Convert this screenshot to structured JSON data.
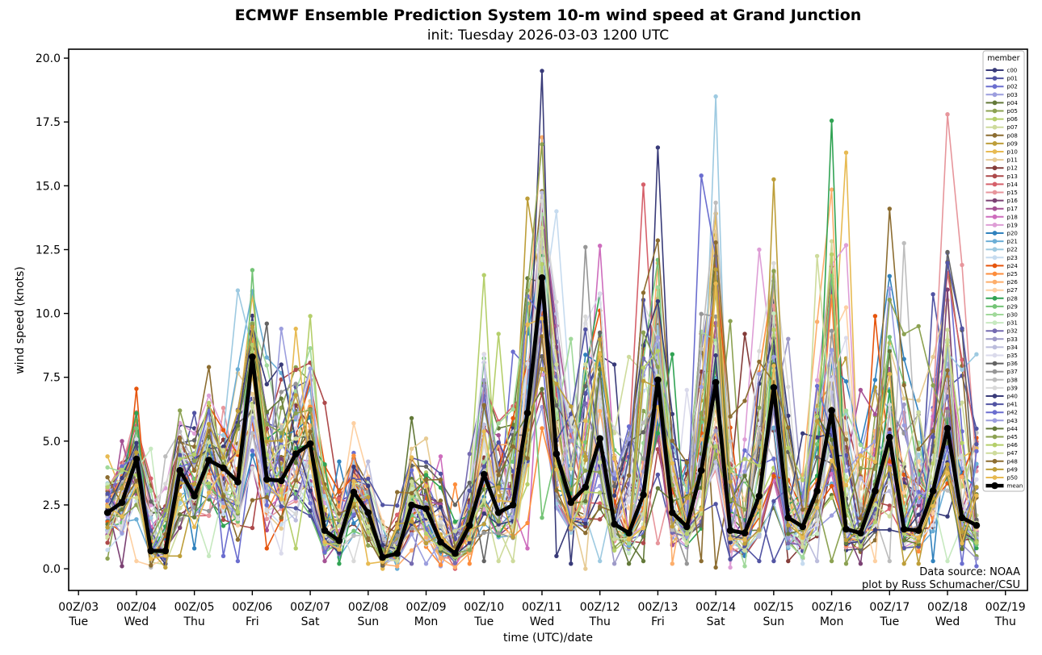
{
  "chart": {
    "title": "ECMWF Ensemble Prediction System 10-m wind speed at Grand Junction",
    "subtitle": "init: Tuesday 2026-03-03 1200 UTC",
    "xlabel": "time (UTC)/date",
    "ylabel": "wind speed (knots)",
    "annotations": [
      "Data source: NOAA",
      "plot by Russ Schumacher/CSU"
    ],
    "legend_title": "member"
  },
  "chart_data": {
    "type": "line",
    "x_start_day": 3.5,
    "x_step_days": 0.25,
    "n_points": 61,
    "xlim": [
      2.83,
      19.38
    ],
    "ylim": [
      -0.85,
      20.35
    ],
    "grid": false,
    "legend_position": "upper right",
    "y_ticks": [
      "0.0",
      "2.5",
      "5.0",
      "7.5",
      "10.0",
      "12.5",
      "15.0",
      "17.5",
      "20.0"
    ],
    "x_ticks": [
      {
        "utc": "00Z/03",
        "dow": "Tue"
      },
      {
        "utc": "00Z/04",
        "dow": "Wed"
      },
      {
        "utc": "00Z/05",
        "dow": "Thu"
      },
      {
        "utc": "00Z/06",
        "dow": "Fri"
      },
      {
        "utc": "00Z/07",
        "dow": "Sat"
      },
      {
        "utc": "00Z/08",
        "dow": "Sun"
      },
      {
        "utc": "00Z/09",
        "dow": "Mon"
      },
      {
        "utc": "00Z/10",
        "dow": "Tue"
      },
      {
        "utc": "00Z/11",
        "dow": "Wed"
      },
      {
        "utc": "00Z/12",
        "dow": "Thu"
      },
      {
        "utc": "00Z/13",
        "dow": "Fri"
      },
      {
        "utc": "00Z/14",
        "dow": "Sat"
      },
      {
        "utc": "00Z/15",
        "dow": "Sun"
      },
      {
        "utc": "00Z/16",
        "dow": "Mon"
      },
      {
        "utc": "00Z/17",
        "dow": "Tue"
      },
      {
        "utc": "00Z/18",
        "dow": "Wed"
      },
      {
        "utc": "00Z/19",
        "dow": "Thu"
      }
    ],
    "mean": [
      2.2,
      2.6,
      4.3,
      0.7,
      0.7,
      3.85,
      2.85,
      4.25,
      3.95,
      3.4,
      8.3,
      3.5,
      3.45,
      4.5,
      4.9,
      1.5,
      1.1,
      3.0,
      2.2,
      0.45,
      0.6,
      2.5,
      2.35,
      1.05,
      0.6,
      1.7,
      3.7,
      2.2,
      2.5,
      6.1,
      11.4,
      4.5,
      2.6,
      3.2,
      5.1,
      1.75,
      1.4,
      2.9,
      7.4,
      2.2,
      1.65,
      3.85,
      7.3,
      1.5,
      1.4,
      2.85,
      7.1,
      2.0,
      1.65,
      3.05,
      6.2,
      1.55,
      1.4,
      3.05,
      5.15,
      1.55,
      1.5,
      3.05,
      5.5,
      2.0,
      1.7
    ],
    "ensemble_envelope_min": [
      0.4,
      0.1,
      0.3,
      0.05,
      0.05,
      0.5,
      0.8,
      0.5,
      0.5,
      0.3,
      1.6,
      0.8,
      0.6,
      0.8,
      0.8,
      0.3,
      0.2,
      0.3,
      0.2,
      0.0,
      0.0,
      0.2,
      0.2,
      0.1,
      0.0,
      0.2,
      0.3,
      0.3,
      0.3,
      0.8,
      2.0,
      0.5,
      0.2,
      0.0,
      0.3,
      0.2,
      0.2,
      0.3,
      1.0,
      0.2,
      0.2,
      0.3,
      0.05,
      0.05,
      0.1,
      0.3,
      0.3,
      0.3,
      0.2,
      0.3,
      0.3,
      0.2,
      0.2,
      0.3,
      0.3,
      0.2,
      0.2,
      0.3,
      0.3,
      0.2,
      0.1
    ],
    "ensemble_envelope_max": [
      4.4,
      5.0,
      7.05,
      4.7,
      4.4,
      6.2,
      6.1,
      7.9,
      6.3,
      10.9,
      11.7,
      9.6,
      9.4,
      9.4,
      9.9,
      6.5,
      4.2,
      5.7,
      4.2,
      2.5,
      3.0,
      5.9,
      5.1,
      4.4,
      3.3,
      4.5,
      11.5,
      9.2,
      8.5,
      14.5,
      19.5,
      14.0,
      9.0,
      12.6,
      12.65,
      8.0,
      8.3,
      15.05,
      16.5,
      8.4,
      7.0,
      15.4,
      18.5,
      9.7,
      9.2,
      12.5,
      15.25,
      9.0,
      5.3,
      12.25,
      17.55,
      16.3,
      7.0,
      9.9,
      14.1,
      12.75,
      9.5,
      10.75,
      17.8,
      11.9,
      8.4
    ],
    "peak_overrides": {
      "10": "p29",
      "26": "p06",
      "30": "p40",
      "34": "p18",
      "38": "c00",
      "42": "p22",
      "46": "p49",
      "50": "p28",
      "54": "p48",
      "58": "p15"
    },
    "members": [
      {
        "name": "c00",
        "color": "#393b79"
      },
      {
        "name": "p01",
        "color": "#5254a3"
      },
      {
        "name": "p02",
        "color": "#6b6ecf"
      },
      {
        "name": "p03",
        "color": "#9c9ede"
      },
      {
        "name": "p04",
        "color": "#637939"
      },
      {
        "name": "p05",
        "color": "#8ca252"
      },
      {
        "name": "p06",
        "color": "#b5cf6b"
      },
      {
        "name": "p07",
        "color": "#cedb9c"
      },
      {
        "name": "p08",
        "color": "#8c6d31"
      },
      {
        "name": "p09",
        "color": "#bd9e39"
      },
      {
        "name": "p10",
        "color": "#e7ba52"
      },
      {
        "name": "p11",
        "color": "#e7cb94"
      },
      {
        "name": "p12",
        "color": "#843c39"
      },
      {
        "name": "p13",
        "color": "#ad494a"
      },
      {
        "name": "p14",
        "color": "#d6616b"
      },
      {
        "name": "p15",
        "color": "#e7969c"
      },
      {
        "name": "p16",
        "color": "#7b4173"
      },
      {
        "name": "p17",
        "color": "#a55194"
      },
      {
        "name": "p18",
        "color": "#ce6dbd"
      },
      {
        "name": "p19",
        "color": "#de9ed6"
      },
      {
        "name": "p20",
        "color": "#3182bd"
      },
      {
        "name": "p21",
        "color": "#6baed6"
      },
      {
        "name": "p22",
        "color": "#9ecae1"
      },
      {
        "name": "p23",
        "color": "#c6dbef"
      },
      {
        "name": "p24",
        "color": "#e6550d"
      },
      {
        "name": "p25",
        "color": "#fd8d3c"
      },
      {
        "name": "p26",
        "color": "#fdae6b"
      },
      {
        "name": "p27",
        "color": "#fdd0a2"
      },
      {
        "name": "p28",
        "color": "#31a354"
      },
      {
        "name": "p29",
        "color": "#74c476"
      },
      {
        "name": "p30",
        "color": "#a1d99b"
      },
      {
        "name": "p31",
        "color": "#c7e9c0"
      },
      {
        "name": "p32",
        "color": "#756bb1"
      },
      {
        "name": "p33",
        "color": "#9e9ac8"
      },
      {
        "name": "p34",
        "color": "#bcbddc"
      },
      {
        "name": "p35",
        "color": "#dadaeb"
      },
      {
        "name": "p36",
        "color": "#636363"
      },
      {
        "name": "p37",
        "color": "#969696"
      },
      {
        "name": "p38",
        "color": "#bdbdbd"
      },
      {
        "name": "p39",
        "color": "#d9d9d9"
      },
      {
        "name": "p40",
        "color": "#393b79"
      },
      {
        "name": "p41",
        "color": "#5254a3"
      },
      {
        "name": "p42",
        "color": "#6b6ecf"
      },
      {
        "name": "p43",
        "color": "#9c9ede"
      },
      {
        "name": "p44",
        "color": "#637939"
      },
      {
        "name": "p45",
        "color": "#8ca252"
      },
      {
        "name": "p46",
        "color": "#b5cf6b"
      },
      {
        "name": "p47",
        "color": "#cedb9c"
      },
      {
        "name": "p48",
        "color": "#8c6d31"
      },
      {
        "name": "p49",
        "color": "#bd9e39"
      },
      {
        "name": "p50",
        "color": "#e7ba52"
      },
      {
        "name": "mean",
        "color": "#000000"
      }
    ]
  }
}
